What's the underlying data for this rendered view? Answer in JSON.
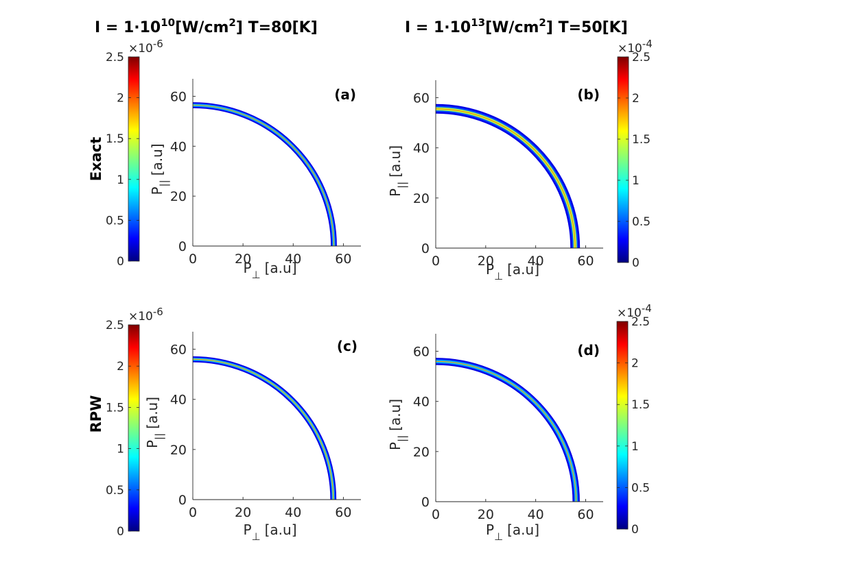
{
  "colors": {
    "colormap": "jet",
    "axis": "#262626",
    "title": "#000000"
  },
  "columns": [
    {
      "title": {
        "lead": "I = 1·10",
        "exp": "10",
        "mid": "[W/cm",
        "exp2": "2",
        "tail": "] T=80[K]"
      }
    },
    {
      "title": {
        "lead": "I = 1·10",
        "exp": "13",
        "mid": "[W/cm",
        "exp2": "2",
        "tail": "] T=50[K]"
      }
    }
  ],
  "rows": [
    {
      "label": "Exact"
    },
    {
      "label": "RPW"
    }
  ],
  "colorbars": [
    {
      "ticks": [
        "0",
        "0.5",
        "1",
        "1.5",
        "2",
        "2.5"
      ],
      "mult": "×10",
      "mult_exp": "-6"
    },
    {
      "ticks": [
        "0",
        "0.5",
        "1",
        "1.5",
        "2",
        "2.5"
      ],
      "mult": "×10",
      "mult_exp": "-4"
    },
    {
      "ticks": [
        "0",
        "0.5",
        "1",
        "1.5",
        "2",
        "2.5"
      ],
      "mult": "×10",
      "mult_exp": "-6"
    },
    {
      "ticks": [
        "0",
        "0.5",
        "1",
        "1.5",
        "2",
        "2.5"
      ],
      "mult": "×10",
      "mult_exp": "-4"
    }
  ],
  "axes": {
    "xlabel": {
      "main": "P",
      "sub": "⊥",
      "unit": "[a.u]"
    },
    "ylabel": {
      "main": "P",
      "sub": "||",
      "unit": "[a.u]"
    },
    "xticks": [
      "0",
      "20",
      "40",
      "60"
    ],
    "yticks": [
      "0",
      "20",
      "40",
      "60"
    ]
  },
  "chart_data": [
    {
      "type": "heatmap",
      "panel": "(a)",
      "xlim": [
        0,
        67
      ],
      "ylim": [
        0,
        67
      ],
      "ring": {
        "center_radius": 56.2,
        "half_width": 1.0,
        "peak_angle_deg": 35,
        "peak_level": 0.35
      },
      "colorbar_range": [
        0,
        2.5e-06
      ]
    },
    {
      "type": "heatmap",
      "panel": "(b)",
      "xlim": [
        0,
        67
      ],
      "ylim": [
        0,
        67
      ],
      "ring": {
        "center_radius": 55.8,
        "half_width": 1.6,
        "peak_angle_deg": 40,
        "peak_level": 0.55
      },
      "colorbar_range": [
        0,
        0.00025
      ]
    },
    {
      "type": "heatmap",
      "panel": "(c)",
      "xlim": [
        0,
        67
      ],
      "ylim": [
        0,
        67
      ],
      "ring": {
        "center_radius": 56.0,
        "half_width": 1.0,
        "peak_angle_deg": 60,
        "peak_level": 0.4
      },
      "colorbar_range": [
        0,
        2.5e-06
      ]
    },
    {
      "type": "heatmap",
      "panel": "(d)",
      "xlim": [
        0,
        67
      ],
      "ylim": [
        0,
        67
      ],
      "ring": {
        "center_radius": 56.2,
        "half_width": 1.2,
        "peak_angle_deg": 55,
        "peak_level": 0.35
      },
      "colorbar_range": [
        0,
        0.00025
      ]
    }
  ]
}
